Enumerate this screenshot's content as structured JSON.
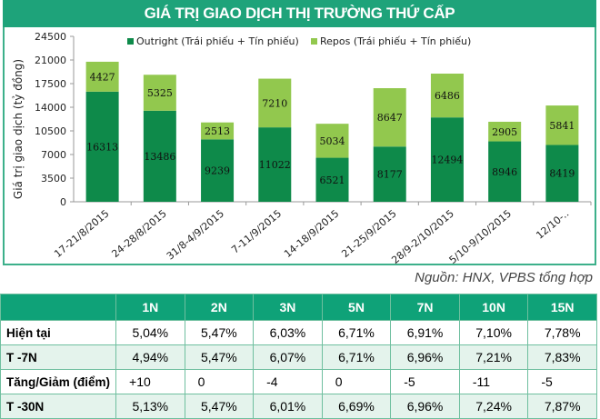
{
  "title": "GIÁ TRỊ GIAO DỊCH THỊ TRƯỜNG THỨ CẤP",
  "source": "Nguồn: HNX, VPBS tổng hợp",
  "chart_data": {
    "type": "bar",
    "stacked": true,
    "categories": [
      "17-21/8/2015",
      "24-28/8/2015",
      "31/8-4/9/2015",
      "7-11/9/2015",
      "14-18/9/2015",
      "21-25/9/2015",
      "28/9-2/10/2015",
      "5/10-9/10/2015",
      "12/10-.."
    ],
    "series": [
      {
        "name": "Outright (Trái phiếu + Tín phiếu)",
        "color": "#0e8a4a",
        "values": [
          16313,
          13486,
          9239,
          11022,
          6521,
          8177,
          12494,
          8946,
          8419
        ]
      },
      {
        "name": "Repos (Trái phiếu + Tín phiếu)",
        "color": "#92c84e",
        "values": [
          4427,
          5325,
          2513,
          7210,
          5034,
          8647,
          6486,
          2905,
          5841
        ]
      }
    ],
    "ylabel": "Giá trị giao dịch (tỷ đồng)",
    "ylim": [
      0,
      24500
    ],
    "yticks": [
      0,
      3500,
      7000,
      10500,
      14000,
      17500,
      21000,
      24500
    ],
    "legend": "top-center",
    "grid": false
  },
  "table": {
    "headers": [
      "",
      "1N",
      "2N",
      "3N",
      "5N",
      "7N",
      "10N",
      "15N"
    ],
    "rows": [
      {
        "label": "Hiện tại",
        "values": [
          "5,04%",
          "5,47%",
          "6,03%",
          "6,71%",
          "6,91%",
          "7,10%",
          "7,78%"
        ]
      },
      {
        "label": "T -7N",
        "values": [
          "4,94%",
          "5,47%",
          "6,07%",
          "6,71%",
          "6,96%",
          "7,21%",
          "7,83%"
        ]
      },
      {
        "label": "Tăng/Giảm (điểm)",
        "values": [
          "+10",
          "0",
          "-4",
          "0",
          "-5",
          "-11",
          "-5"
        ]
      },
      {
        "label": "T -30N",
        "values": [
          "5,13%",
          "5,47%",
          "6,01%",
          "6,69%",
          "6,96%",
          "7,24%",
          "7,87%"
        ]
      }
    ]
  }
}
